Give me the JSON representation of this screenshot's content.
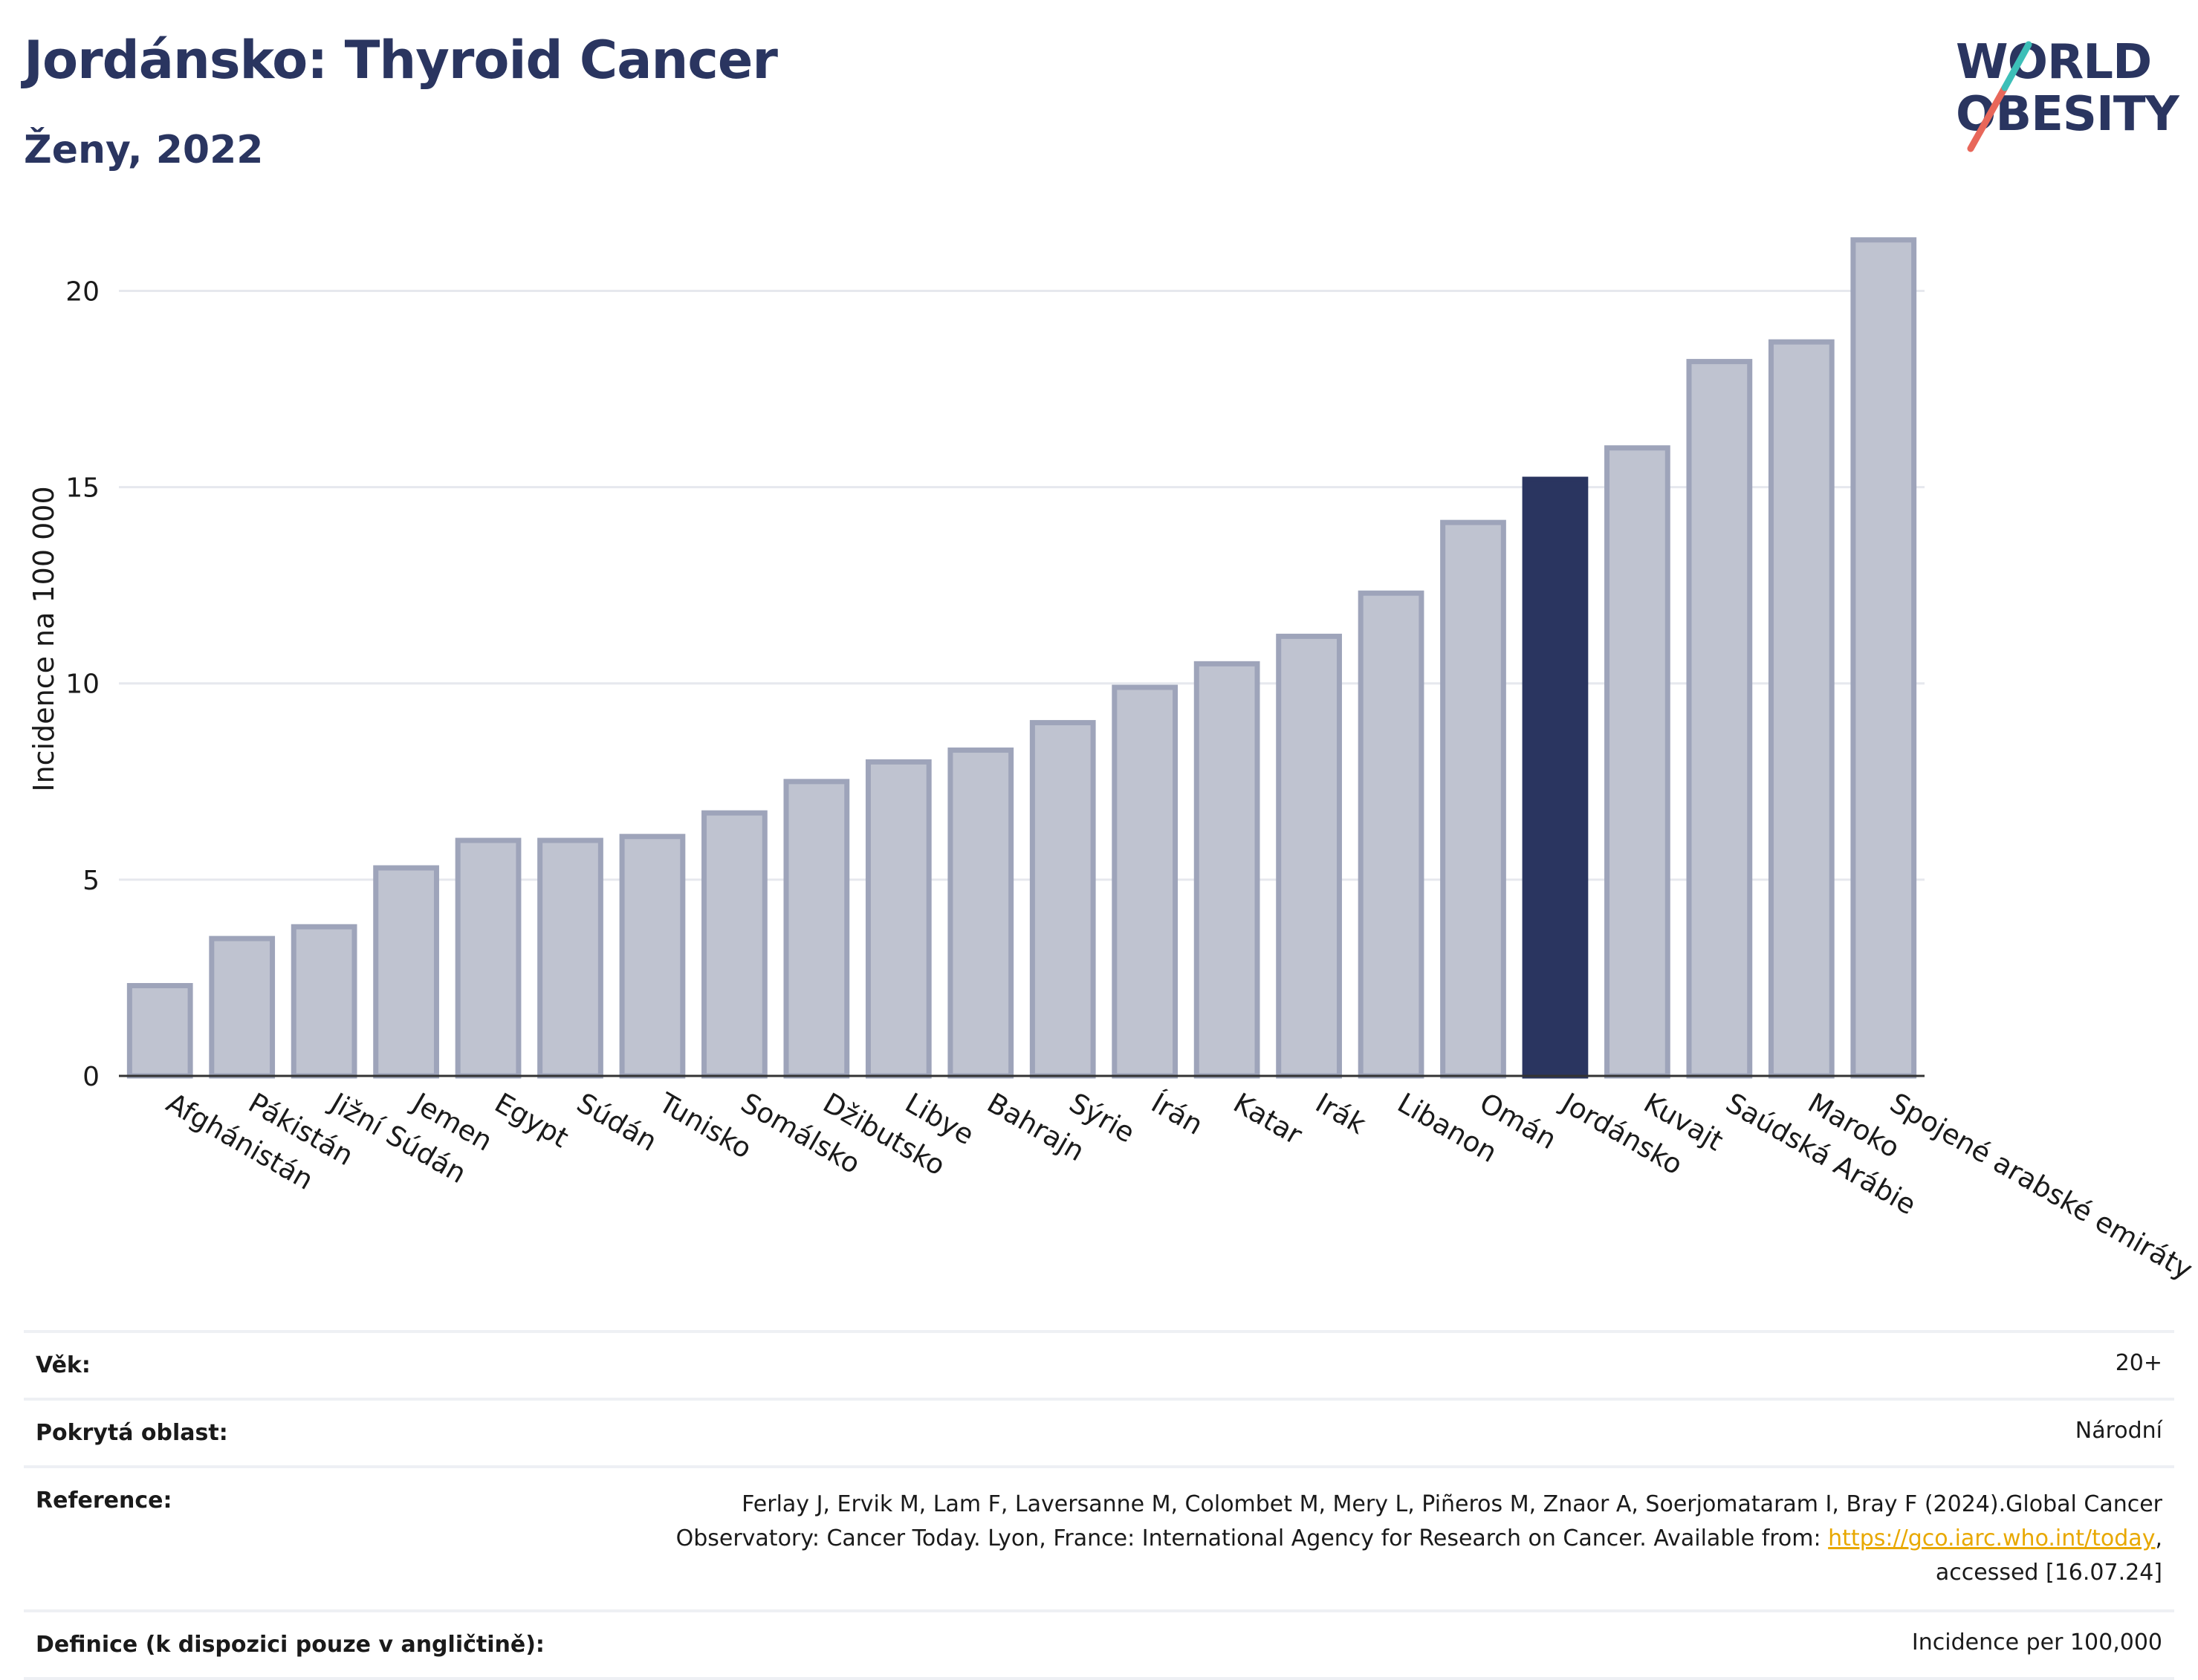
{
  "header": {
    "title": "Jordánsko: Thyroid Cancer",
    "subtitle": "Ženy, 2022"
  },
  "logo": {
    "line1": "WORLD",
    "line2": "OBESITY",
    "slash_colors": [
      "#e8675a",
      "#3dbfb8"
    ],
    "text_color": "#2a3560"
  },
  "chart_data": {
    "type": "bar",
    "categories": [
      "Afghánistán",
      "Pákistán",
      "Jižní Súdán",
      "Jemen",
      "Egypt",
      "Súdán",
      "Tunisko",
      "Somálsko",
      "Džibutsko",
      "Libye",
      "Bahrajn",
      "Sýrie",
      "Írán",
      "Katar",
      "Irák",
      "Libanon",
      "Omán",
      "Jordánsko",
      "Kuvajt",
      "Saúdská Arábie",
      "Maroko",
      "Spojené arabské emiráty"
    ],
    "values": [
      2.3,
      3.5,
      3.8,
      5.3,
      6.0,
      6.0,
      6.1,
      6.7,
      7.5,
      8.0,
      8.3,
      9.0,
      9.9,
      10.5,
      11.2,
      12.3,
      14.1,
      15.2,
      16.0,
      18.2,
      18.7,
      21.3
    ],
    "highlight": "Jordánsko",
    "ylabel": "Incidence na 100 000",
    "xlabel": "",
    "ylim": [
      0,
      22.3
    ],
    "yticks": [
      0,
      5,
      10,
      15,
      20
    ],
    "grid": true,
    "colors": {
      "bar": "#bfc3d0",
      "bar_border": "#9ea4ba",
      "highlight": "#2a3560",
      "grid": "#e6e8ee",
      "axis": "#333333"
    }
  },
  "meta": {
    "age_label": "Věk:",
    "age_value": "20+",
    "coverage_label": "Pokrytá oblast:",
    "coverage_value": "Národní",
    "reference_label": "Reference:",
    "reference_line1": "Ferlay J, Ervik M, Lam F, Laversanne M, Colombet M, Mery L, Piñeros M, Znaor A, Soerjomataram I, Bray F (2024).Global Cancer",
    "reference_line2_pre": "Observatory: Cancer Today. Lyon, France: International Agency for Research on Cancer. Available from: ",
    "reference_link": "https://gco.iarc.who.int/today",
    "reference_line2_post": ",",
    "reference_line3": "accessed [16.07.24]",
    "definition_label": "Definice (k dispozici pouze v angličtině):",
    "definition_value": "Incidence per 100,000"
  }
}
